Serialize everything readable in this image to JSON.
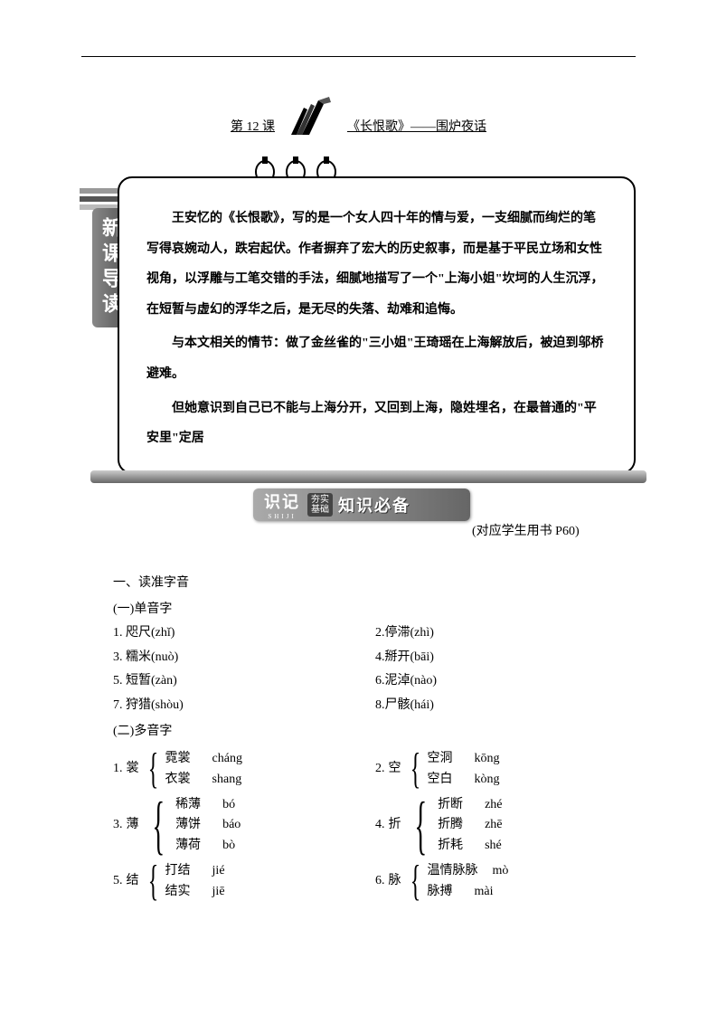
{
  "lesson": {
    "label": "第 12 课",
    "title": "《长恨歌》——围炉夜话"
  },
  "sidebar": {
    "label": "新课导读"
  },
  "intro": {
    "p1": "王安忆的《长恨歌》，写的是一个女人四十年的情与爱，一支细腻而绚烂的笔写得哀婉动人，跌宕起伏。作者摒弃了宏大的历史叙事，而是基于平民立场和女性视角，以浮雕与工笔交错的手法，细腻地描写了一个\"上海小姐\"坎坷的人生沉浮，在短暂与虚幻的浮华之后，是无尽的失落、劫难和追悔。",
    "p2": "与本文相关的情节：做了金丝雀的\"三小姐\"王琦瑶在上海解放后，被迫到邬桥避难。",
    "p3_truncated": "但她意识到自己已不能与上海分开，又回到上海，隐姓埋名，在最普通的\"平安里\"定居"
  },
  "banner": {
    "main_left": "识记",
    "sub_left": "SHIJI",
    "mid_top": "夯实",
    "mid_bot": "基础",
    "right": "知识必备"
  },
  "page_ref": "(对应学生用书 P60)",
  "section1": {
    "heading": "一、读准字音",
    "sub1": "(一)单音字",
    "mono": [
      {
        "l": "1. 咫尺(zhǐ)",
        "r": "2.停滞(zhì)"
      },
      {
        "l": "3. 糯米(nuò)",
        "r": "4.掰开(bāi)"
      },
      {
        "l": "5. 短暂(zàn)",
        "r": "6.泥淖(nào)"
      },
      {
        "l": "7. 狩猎(shòu)",
        "r": "8.尸骸(hái)"
      }
    ],
    "sub2": "(二)多音字",
    "poly": [
      {
        "ln": "1.",
        "lh": "裳",
        "lo": [
          {
            "w": "霓裳",
            "p": "cháng"
          },
          {
            "w": "衣裳",
            "p": "shang"
          }
        ],
        "rn": "2.",
        "rh": "空",
        "ro": [
          {
            "w": "空洞",
            "p": "kōng"
          },
          {
            "w": "空白",
            "p": "kòng"
          }
        ]
      },
      {
        "ln": "3.",
        "lh": "薄",
        "lo": [
          {
            "w": "稀薄",
            "p": "bó"
          },
          {
            "w": "薄饼",
            "p": "báo"
          },
          {
            "w": "薄荷",
            "p": "bò"
          }
        ],
        "rn": "4.",
        "rh": "折",
        "ro": [
          {
            "w": "折断",
            "p": "zhé"
          },
          {
            "w": "折腾",
            "p": "zhē"
          },
          {
            "w": "折耗",
            "p": "shé"
          }
        ]
      },
      {
        "ln": "5.",
        "lh": "结",
        "lo": [
          {
            "w": "打结",
            "p": "jié"
          },
          {
            "w": "结实",
            "p": "jiē"
          }
        ],
        "rn": "6.",
        "rh": "脉",
        "ro": [
          {
            "w": "温情脉脉",
            "p": "mò"
          },
          {
            "w": "脉搏",
            "p": "mài"
          }
        ]
      }
    ]
  },
  "colors": {
    "text": "#000000",
    "bg": "#ffffff",
    "banner_grad_a": "#aaaaaa",
    "banner_grad_b": "#666666",
    "sidebar_grad_a": "#888888",
    "sidebar_grad_b": "#555555"
  }
}
